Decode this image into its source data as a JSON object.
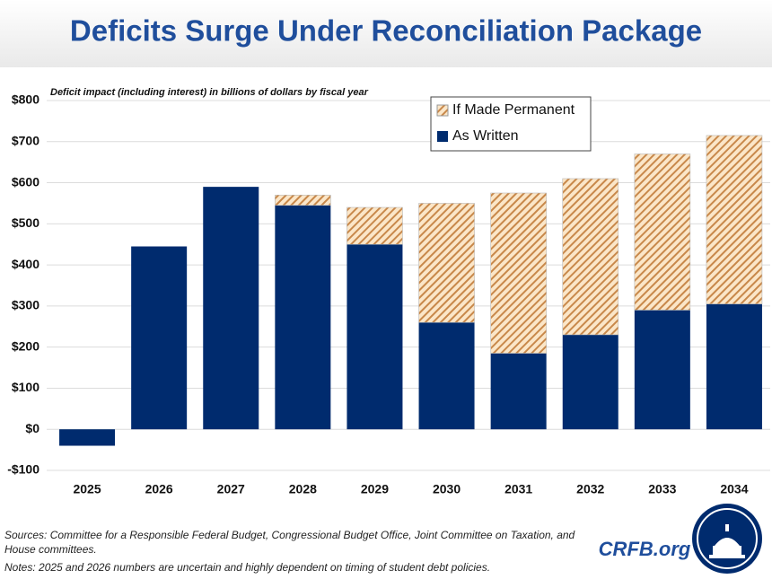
{
  "chart_data": {
    "type": "stacked_bar",
    "title": "Deficits Surge Under Reconciliation Package",
    "subtitle": "Deficit impact (including interest) in billions of dollars by fiscal year",
    "categories": [
      "2025",
      "2026",
      "2027",
      "2028",
      "2029",
      "2030",
      "2031",
      "2032",
      "2033",
      "2034"
    ],
    "series": [
      {
        "name": "As Written",
        "color": "#002b6e",
        "values": [
          -40,
          445,
          590,
          545,
          450,
          260,
          185,
          230,
          290,
          305
        ]
      },
      {
        "name": "If Made Permanent",
        "color": "#c8884a",
        "values": [
          0,
          0,
          0,
          25,
          90,
          290,
          390,
          380,
          380,
          410
        ]
      }
    ],
    "ylim": [
      -100,
      800
    ],
    "yticks": [
      {
        "value": -100,
        "label": "-$100"
      },
      {
        "value": 0,
        "label": "$0"
      },
      {
        "value": 100,
        "label": "$100"
      },
      {
        "value": 200,
        "label": "$200"
      },
      {
        "value": 300,
        "label": "$300"
      },
      {
        "value": 400,
        "label": "$400"
      },
      {
        "value": 500,
        "label": "$500"
      },
      {
        "value": 600,
        "label": "$600"
      },
      {
        "value": 700,
        "label": "$700"
      },
      {
        "value": 800,
        "label": "$800"
      }
    ],
    "grid": true,
    "legend": "top",
    "sources": "Sources: Committee for a Responsible Federal Budget, Congressional Budget Office, Joint Committee on Taxation, and House committees.",
    "notes": "Notes: 2025 and 2026 numbers are uncertain and highly dependent on timing of student debt policies.",
    "brand": "CRFB.org"
  }
}
